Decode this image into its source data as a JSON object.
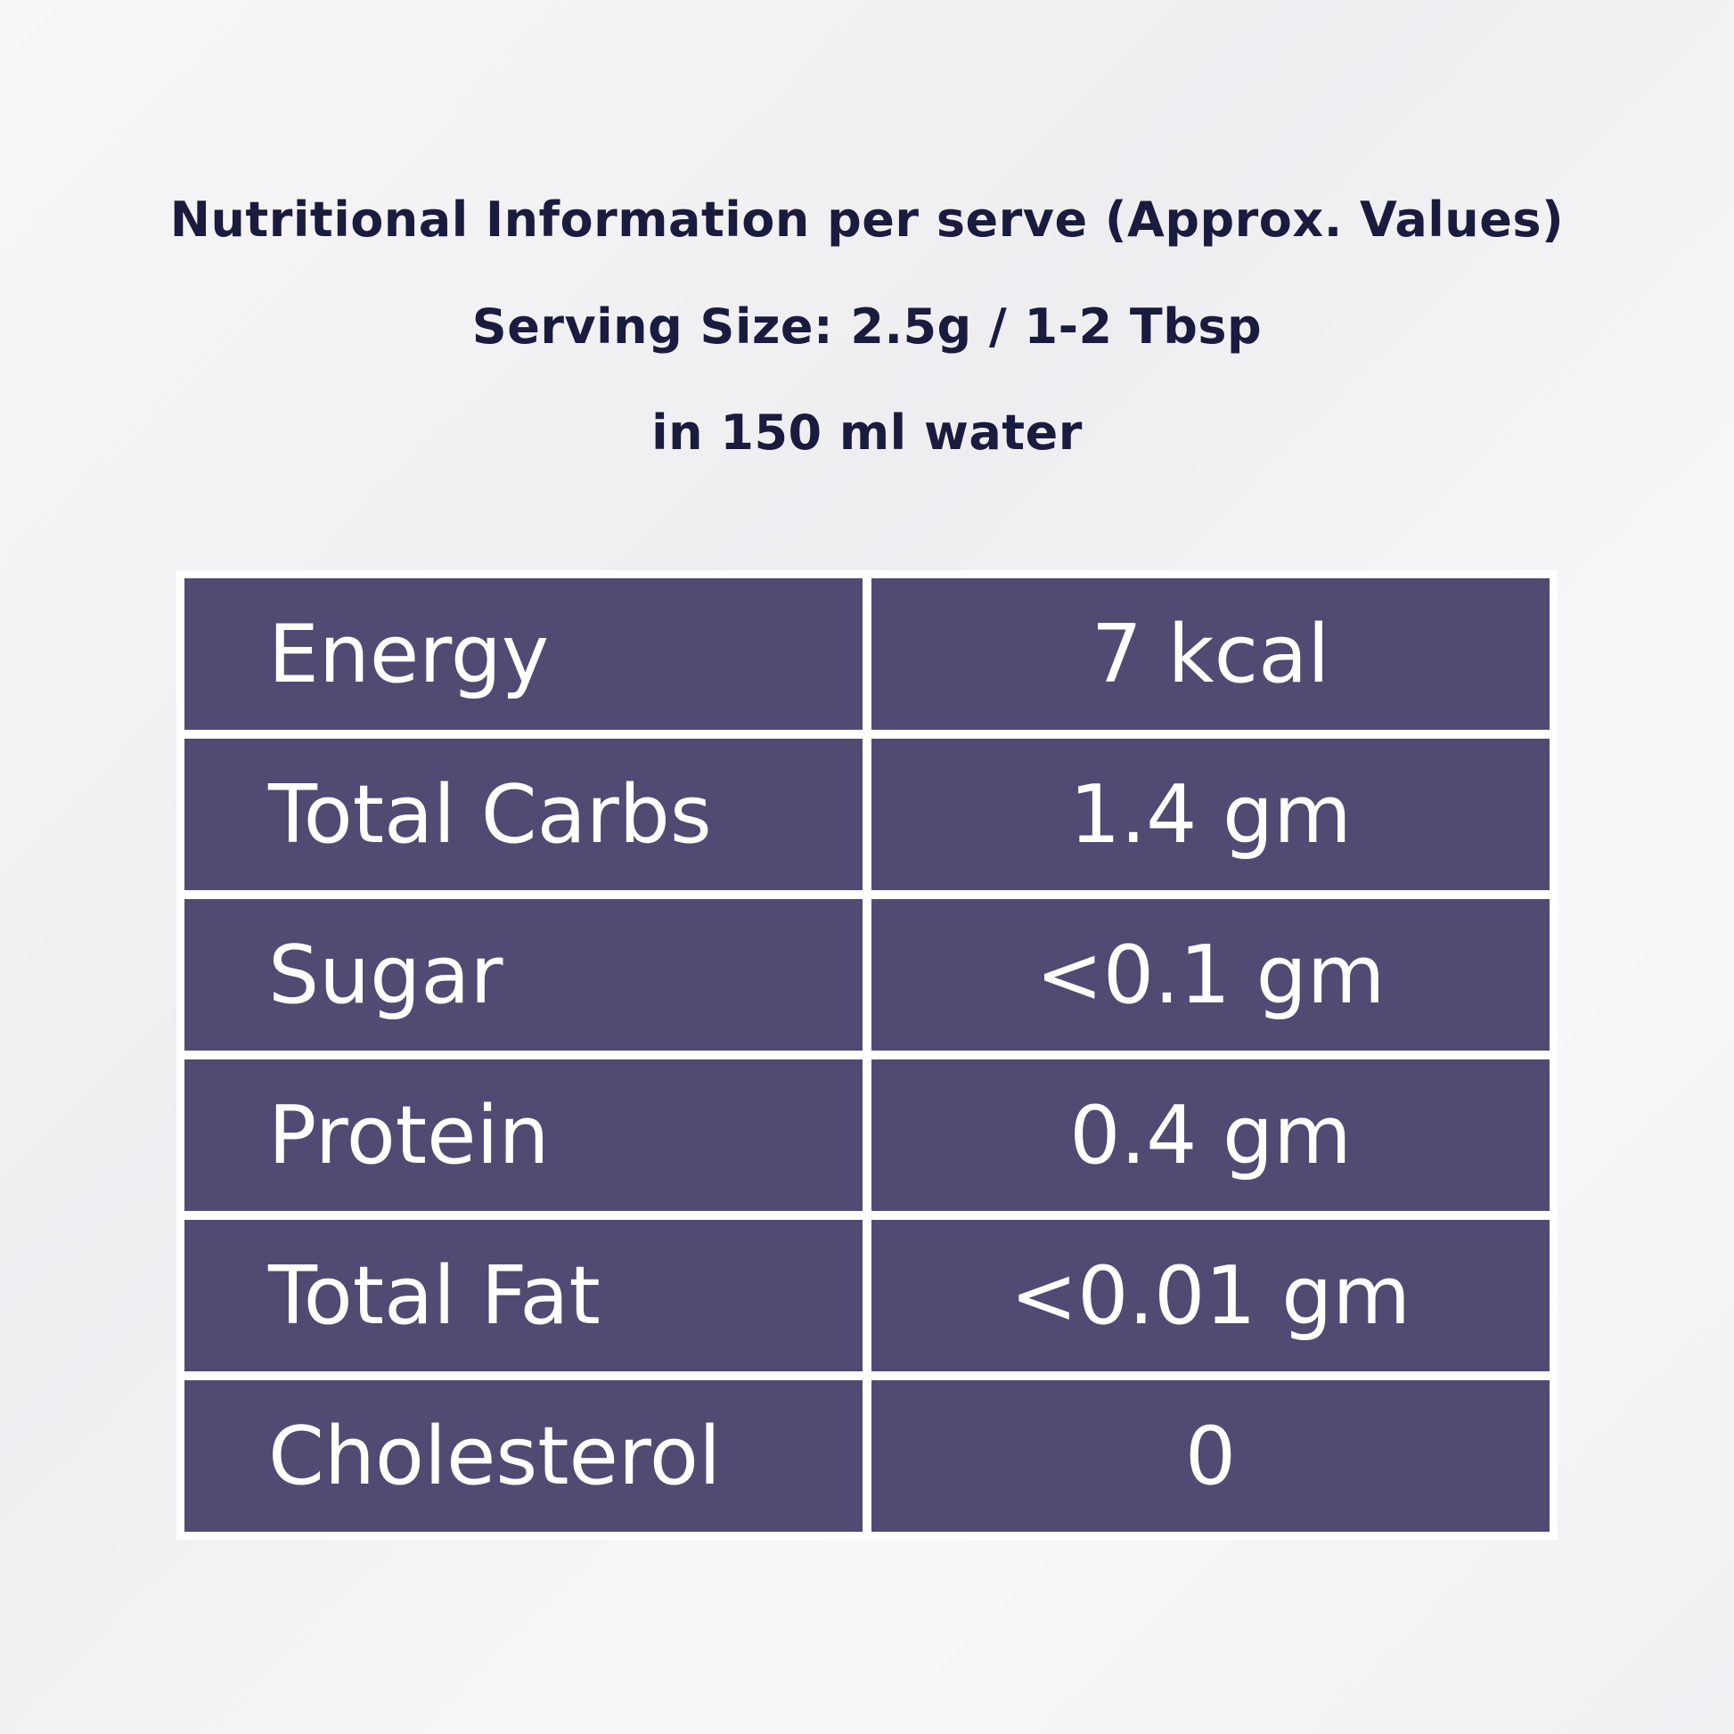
{
  "header": {
    "title": "Nutritional Information per serve (Approx. Values)",
    "serving": "Serving Size: 2.5g / 1-2 Tbsp",
    "water": "in 150 ml water"
  },
  "colors": {
    "cell_bg": "#514a72",
    "heading_text": "#1b1a3f"
  },
  "rows": [
    {
      "label": "Energy",
      "value": "7 kcal"
    },
    {
      "label": "Total Carbs",
      "value": "1.4 gm"
    },
    {
      "label": "Sugar",
      "value": "<0.1 gm"
    },
    {
      "label": "Protein",
      "value": "0.4 gm"
    },
    {
      "label": "Total Fat",
      "value": "<0.01 gm"
    },
    {
      "label": "Cholesterol",
      "value": "0"
    }
  ]
}
